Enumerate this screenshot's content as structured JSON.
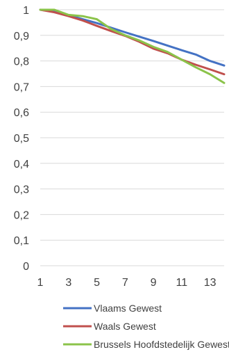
{
  "chart_data": {
    "type": "line",
    "title": "",
    "xlabel": "",
    "ylabel": "",
    "x": [
      1,
      2,
      3,
      4,
      5,
      6,
      7,
      8,
      9,
      10,
      11,
      12,
      13,
      14
    ],
    "x_tick_labels": [
      "1",
      "3",
      "5",
      "7",
      "9",
      "11",
      "13"
    ],
    "y_tick_labels": [
      "0",
      "0,1",
      "0,2",
      "0,3",
      "0,4",
      "0,5",
      "0,6",
      "0,7",
      "0,8",
      "0,9",
      "1"
    ],
    "ylim": [
      0,
      1
    ],
    "xlim": [
      1,
      14
    ],
    "grid": "horizontal",
    "legend_position": "bottom",
    "series": [
      {
        "name": "Vlaams Gewest",
        "color": "#4472C4",
        "values": [
          1.0,
          0.993,
          0.978,
          0.963,
          0.948,
          0.93,
          0.912,
          0.895,
          0.878,
          0.86,
          0.842,
          0.825,
          0.8,
          0.782
        ]
      },
      {
        "name": "Waals Gewest",
        "color": "#C0504D",
        "values": [
          1.0,
          0.99,
          0.975,
          0.958,
          0.937,
          0.917,
          0.898,
          0.875,
          0.848,
          0.83,
          0.805,
          0.785,
          0.767,
          0.748
        ]
      },
      {
        "name": "Brussels Hoofdstedelijk Gewest",
        "color": "#8BC34A",
        "values": [
          1.0,
          1.0,
          0.98,
          0.975,
          0.963,
          0.925,
          0.9,
          0.88,
          0.855,
          0.835,
          0.805,
          0.775,
          0.748,
          0.714
        ]
      }
    ]
  }
}
